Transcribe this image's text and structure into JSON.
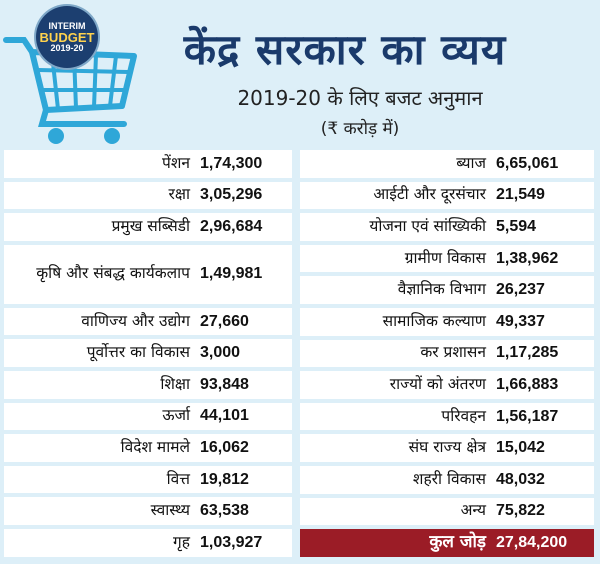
{
  "header": {
    "badge_line1": "INTERIM",
    "badge_line2": "BUDGET",
    "badge_line3": "2019-20",
    "title": "केंद्र सरकार का व्यय",
    "subtitle": "2019-20 के लिए बजट अनुमान",
    "unit": "(₹ करोड़ में)"
  },
  "colors": {
    "background": "#ddeff8",
    "title": "#1a3a6b",
    "total_bg": "#9b1c26",
    "cart": "#2fa7d8"
  },
  "icons": [
    "shopping-cart-icon"
  ],
  "chart_data": {
    "type": "table",
    "title": "केंद्र सरकार का व्यय",
    "subtitle": "2019-20 के लिए बजट अनुमान",
    "unit": "(₹ करोड़ में)",
    "left": [
      {
        "name": "पेंशन",
        "value": "1,74,300"
      },
      {
        "name": "रक्षा",
        "value": "3,05,296"
      },
      {
        "name": "प्रमुख सब्सिडी",
        "value": "2,96,684"
      },
      {
        "name": "कृषि और संबद्ध कार्यकलाप",
        "value": "1,49,981"
      },
      {
        "name": "वाणिज्य और उद्योग",
        "value": "27,660"
      },
      {
        "name": "पूर्वोत्तर का विकास",
        "value": "3,000"
      },
      {
        "name": "शिक्षा",
        "value": "93,848"
      },
      {
        "name": "ऊर्जा",
        "value": "44,101"
      },
      {
        "name": "विदेश मामले",
        "value": "16,062"
      },
      {
        "name": "वित्त",
        "value": "19,812"
      },
      {
        "name": "स्वास्थ्य",
        "value": "63,538"
      },
      {
        "name": "गृह",
        "value": "1,03,927"
      }
    ],
    "right": [
      {
        "name": "ब्याज",
        "value": "6,65,061"
      },
      {
        "name": "आईटी और दूरसंचार",
        "value": "21,549"
      },
      {
        "name": "योजना एवं सांख्यिकी",
        "value": "5,594"
      },
      {
        "name": "ग्रामीण विकास",
        "value": "1,38,962"
      },
      {
        "name": "वैज्ञानिक विभाग",
        "value": "26,237"
      },
      {
        "name": "सामाजिक कल्याण",
        "value": "49,337"
      },
      {
        "name": "कर प्रशासन",
        "value": "1,17,285"
      },
      {
        "name": "राज्यों को अंतरण",
        "value": "1,66,883"
      },
      {
        "name": "परिवहन",
        "value": "1,56,187"
      },
      {
        "name": "संघ राज्य क्षेत्र",
        "value": "15,042"
      },
      {
        "name": "शहरी विकास",
        "value": "48,032"
      },
      {
        "name": "अन्य",
        "value": "75,822"
      }
    ],
    "total": {
      "name": "कुल जोड़",
      "value": "27,84,200"
    }
  }
}
